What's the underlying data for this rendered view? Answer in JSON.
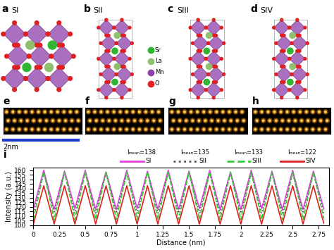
{
  "structures": [
    {
      "panel": "a",
      "title": "SI"
    },
    {
      "panel": "b",
      "title": "SII"
    },
    {
      "panel": "c",
      "title": "SIII"
    },
    {
      "panel": "d",
      "title": "SIV"
    }
  ],
  "atom_legend": [
    {
      "name": "Sr",
      "color": "#2fb52f"
    },
    {
      "name": "La",
      "color": "#8fbf6f"
    },
    {
      "name": "Mn",
      "color": "#8e3fa8"
    },
    {
      "name": "O",
      "color": "#e02020"
    }
  ],
  "images": [
    {
      "panel": "e"
    },
    {
      "panel": "f"
    },
    {
      "panel": "g"
    },
    {
      "panel": "h"
    }
  ],
  "scale_bar": "2nm",
  "chart_data": {
    "panel": "i",
    "type": "line",
    "xlabel": "Distance (nm)",
    "ylabel": "Intensity (a.u.)",
    "x": [
      0,
      0.05,
      0.1,
      0.15,
      0.2,
      0.25,
      0.3,
      0.35,
      0.4,
      0.45,
      0.5,
      0.55,
      0.6,
      0.65,
      0.7,
      0.75,
      0.8,
      0.85,
      0.9,
      0.95,
      1,
      1.05,
      1.1,
      1.15,
      1.2,
      1.25,
      1.3,
      1.35,
      1.4,
      1.45,
      1.5,
      1.55,
      1.6,
      1.65,
      1.7,
      1.75,
      1.8,
      1.85,
      1.9,
      1.95,
      2,
      2.05,
      2.1,
      2.15,
      2.2,
      2.25,
      2.3,
      2.35,
      2.4,
      2.45,
      2.5,
      2.55,
      2.6,
      2.65,
      2.7,
      2.75,
      2.8
    ],
    "series": [
      {
        "name": "SI",
        "label": "Iₘₑₐₙ=138",
        "color": "#e040e0",
        "line_style": "solid",
        "values": [
          118,
          139,
          160,
          138,
          117,
          138,
          159,
          139,
          118,
          139,
          160,
          138,
          117,
          138,
          158,
          138,
          117,
          139,
          160,
          139,
          118,
          138,
          159,
          138,
          117,
          139,
          160,
          138,
          117,
          138,
          159,
          139,
          118,
          139,
          160,
          138,
          117,
          138,
          158,
          138,
          117,
          139,
          160,
          139,
          118,
          138,
          159,
          138,
          117,
          139,
          160,
          138,
          117,
          138,
          159,
          138,
          118
        ]
      },
      {
        "name": "SII",
        "label": "Iₘₑₐₙ=135",
        "color": "#555555",
        "line_style": "dotted",
        "values": [
          113,
          135,
          157,
          135,
          113,
          135,
          157,
          135,
          113,
          135,
          157,
          135,
          113,
          135,
          157,
          135,
          113,
          135,
          157,
          135,
          113,
          135,
          157,
          135,
          113,
          135,
          157,
          135,
          113,
          135,
          157,
          135,
          113,
          135,
          157,
          135,
          113,
          135,
          157,
          135,
          113,
          135,
          157,
          135,
          113,
          135,
          157,
          135,
          113,
          135,
          157,
          135,
          113,
          135,
          157,
          135,
          113
        ]
      },
      {
        "name": "SIII",
        "label": "Iₘₑₐₙ=133",
        "color": "#33cc33",
        "line_style": "dashed",
        "values": [
          106,
          132,
          158,
          133,
          106,
          132,
          158,
          133,
          106,
          132,
          158,
          133,
          106,
          132,
          158,
          133,
          106,
          132,
          158,
          133,
          106,
          132,
          158,
          133,
          106,
          132,
          158,
          133,
          106,
          132,
          158,
          133,
          106,
          132,
          158,
          133,
          106,
          132,
          158,
          133,
          106,
          132,
          158,
          133,
          106,
          132,
          158,
          133,
          106,
          132,
          158,
          133,
          106,
          132,
          158,
          133,
          107
        ]
      },
      {
        "name": "SIV",
        "label": "Iₘₑₐₙ=122",
        "color": "#e02020",
        "line_style": "solid",
        "values": [
          101,
          122,
          143,
          122,
          101,
          122,
          143,
          122,
          101,
          122,
          143,
          122,
          101,
          122,
          143,
          122,
          101,
          122,
          143,
          122,
          101,
          122,
          143,
          122,
          101,
          122,
          143,
          122,
          101,
          122,
          143,
          122,
          101,
          122,
          143,
          122,
          101,
          122,
          143,
          122,
          101,
          122,
          143,
          122,
          101,
          122,
          143,
          122,
          101,
          122,
          143,
          122,
          101,
          122,
          143,
          122,
          102
        ]
      }
    ],
    "xlim": [
      0,
      2.85
    ],
    "ylim": [
      100,
      163
    ],
    "xticks": [
      0,
      0.25,
      0.5,
      0.75,
      1,
      1.25,
      1.5,
      1.75,
      2,
      2.25,
      2.5,
      2.75
    ],
    "yticks": [
      100,
      105,
      110,
      115,
      120,
      125,
      130,
      135,
      140,
      145,
      150,
      155,
      160
    ]
  }
}
